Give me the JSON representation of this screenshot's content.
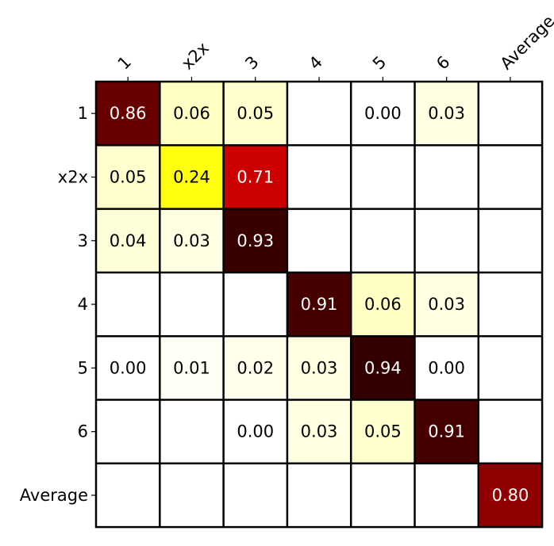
{
  "chart_data": {
    "type": "heatmap",
    "title": "",
    "xlabel": "",
    "ylabel": "",
    "colormap": "hot_r",
    "value_range": [
      0,
      1
    ],
    "grid": true,
    "x_labels": [
      "1",
      "x2x",
      "3",
      "4",
      "5",
      "6",
      "Average"
    ],
    "y_labels": [
      "1",
      "x2x",
      "3",
      "4",
      "5",
      "6",
      "Average"
    ],
    "values": [
      [
        0.86,
        0.06,
        0.05,
        null,
        0.0,
        0.03,
        null
      ],
      [
        0.05,
        0.24,
        0.71,
        null,
        null,
        null,
        null
      ],
      [
        0.04,
        0.03,
        0.93,
        null,
        null,
        null,
        null
      ],
      [
        null,
        null,
        null,
        0.91,
        0.06,
        0.03,
        null
      ],
      [
        0.0,
        0.01,
        0.02,
        0.03,
        0.94,
        0.0,
        null
      ],
      [
        null,
        null,
        0.0,
        0.03,
        0.05,
        0.91,
        null
      ],
      [
        null,
        null,
        null,
        null,
        null,
        null,
        0.8
      ]
    ],
    "cell_labels": [
      [
        "0.86",
        "0.06",
        "0.05",
        "",
        "0.00",
        "0.03",
        ""
      ],
      [
        "0.05",
        "0.24",
        "0.71",
        "",
        "",
        "",
        ""
      ],
      [
        "0.04",
        "0.03",
        "0.93",
        "",
        "",
        "",
        ""
      ],
      [
        "",
        "",
        "",
        "0.91",
        "0.06",
        "0.03",
        ""
      ],
      [
        "0.00",
        "0.01",
        "0.02",
        "0.03",
        "0.94",
        "0.00",
        ""
      ],
      [
        "",
        "",
        "0.00",
        "0.03",
        "0.05",
        "0.91",
        ""
      ],
      [
        "",
        "",
        "",
        "",
        "",
        "",
        "0.80"
      ]
    ]
  }
}
